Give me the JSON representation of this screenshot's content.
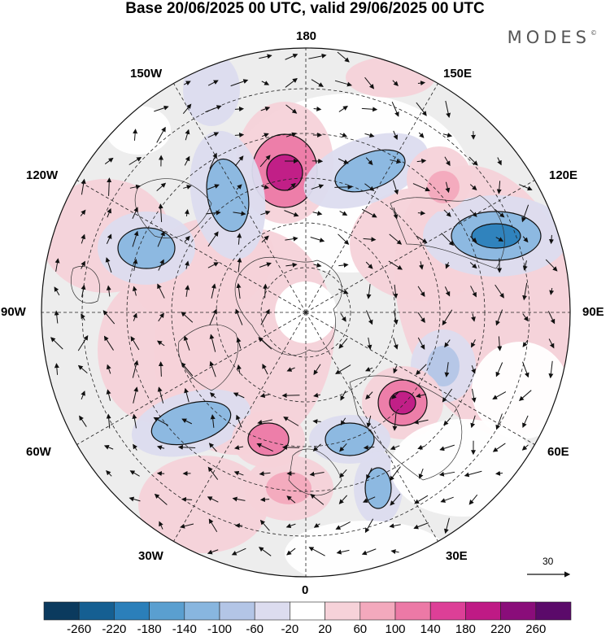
{
  "header": {
    "title": "Base 20/06/2025 00 UTC, valid 29/06/2025 00 UTC",
    "brand": "MODES",
    "brand_mark": "©"
  },
  "map": {
    "projection": "north-polar-stereographic",
    "longitude_labels": {
      "top": "180",
      "top_left": "150W",
      "top_right": "150E",
      "upper_left": "120W",
      "upper_right": "120E",
      "left": "90W",
      "right": "90E",
      "lower_left": "60W",
      "lower_right": "60E",
      "bottom_left": "30W",
      "bottom_right": "30E",
      "bottom": "0"
    },
    "vector_reference": {
      "value": "30"
    }
  },
  "colorbar": {
    "ticks": [
      "-260",
      "-220",
      "-180",
      "-140",
      "-100",
      "-60",
      "-20",
      "20",
      "60",
      "100",
      "140",
      "180",
      "220",
      "260"
    ],
    "colors": [
      "#0b3a5e",
      "#155f92",
      "#2b7fba",
      "#5a9fd0",
      "#88b6df",
      "#b3c5e6",
      "#dcdcef",
      "#ffffff",
      "#f6d2d9",
      "#f3a9bd",
      "#ec79a6",
      "#dd3f97",
      "#bf1a85",
      "#8a0d7a",
      "#5b0a6a"
    ]
  }
}
